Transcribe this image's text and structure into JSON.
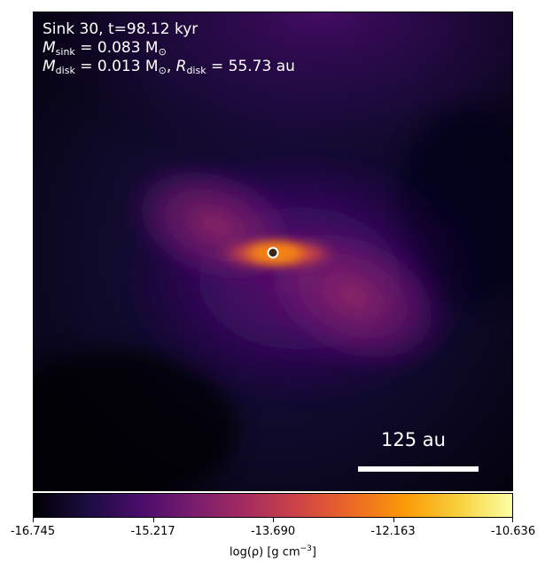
{
  "chart_data": {
    "type": "heatmap",
    "info": {
      "sink_line": "Sink 30, t=98.12 kyr",
      "m_sink_symbol": "M",
      "m_sink_sub": "sink",
      "m_sink_value": " = 0.083 M",
      "m_sink_unit_sub": "⊙",
      "m_disk_symbol": "M",
      "m_disk_sub": "disk",
      "m_disk_value": " = 0.013 M",
      "m_disk_unit_sub": "⊙",
      "r_disk_sep": ", ",
      "r_disk_symbol": "R",
      "r_disk_sub": "disk",
      "r_disk_value": " = 55.73 au"
    },
    "scale_bar_label": "125 au",
    "colorbar": {
      "colormap": "inferno",
      "range": [
        -16.745,
        -10.636
      ],
      "ticks": [
        "-16.745",
        "-15.217",
        "-13.690",
        "-12.163",
        "-10.636"
      ],
      "label_main": "log(ρ) [g cm",
      "label_sup": "−3",
      "label_end": "]"
    },
    "sink_marker": "sink-particle",
    "colors": {
      "background": "#000004",
      "marker_edge": "#ffffff",
      "marker_fill": "#3a2a1a"
    }
  }
}
